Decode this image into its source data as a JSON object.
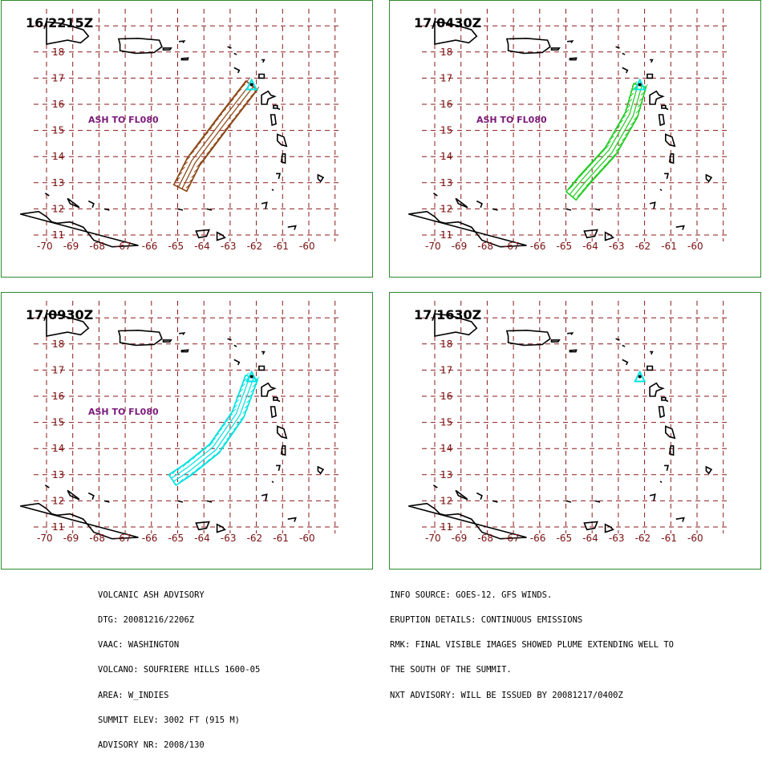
{
  "colors": {
    "panel_border": "#2e8b2e",
    "grid": "#8b1a1a",
    "tick_label": "#7a1010",
    "ash_label": "#7a1a7a",
    "coast": "#000000",
    "volcano_marker": "#00e5e5"
  },
  "axes": {
    "lat_ticks": [
      "11",
      "12",
      "13",
      "14",
      "15",
      "16",
      "17",
      "18"
    ],
    "lon_ticks": [
      "-70",
      "-69",
      "-68",
      "-67",
      "-66",
      "-65",
      "-64",
      "-63",
      "-62",
      "-61",
      "-60"
    ]
  },
  "panels": [
    {
      "time": "16/2215Z",
      "ash_label": "ASH TO FL080",
      "plume_color": "#8b4513",
      "plume_shape": "straight"
    },
    {
      "time": "17/0430Z",
      "ash_label": "ASH TO FL080",
      "plume_color": "#22cc22",
      "plume_shape": "curved"
    },
    {
      "time": "17/0930Z",
      "ash_label": "ASH TO FL080",
      "plume_color": "#00e0e0",
      "plume_shape": "curved_wide"
    },
    {
      "time": "17/1630Z",
      "ash_label": "",
      "plume_color": "",
      "plume_shape": "none"
    }
  ],
  "advisory_left": [
    "VOLCANIC ASH ADVISORY",
    "DTG: 20081216/2206Z",
    "VAAC: WASHINGTON",
    "VOLCANO: SOUFRIERE HILLS 1600-05",
    "AREA: W_INDIES",
    "SUMMIT ELEV: 3002 FT (915 M)",
    "ADVISORY NR: 2008/130"
  ],
  "advisory_right": [
    "INFO SOURCE: GOES-12. GFS WINDS.",
    "ERUPTION DETAILS: CONTINUOUS EMISSIONS",
    "RMK: FINAL VISIBLE IMAGES SHOWED PLUME EXTENDING WELL TO",
    "THE SOUTH OF THE SUMMIT.",
    "NXT ADVISORY: WILL BE ISSUED BY 20081217/0400Z"
  ]
}
